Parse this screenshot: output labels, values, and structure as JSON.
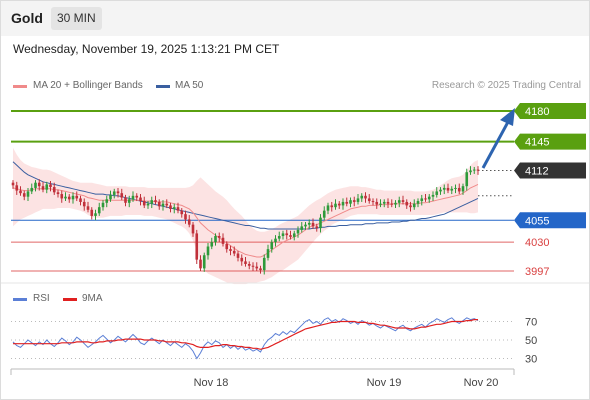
{
  "header": {
    "title": "Gold",
    "timeframe": "30 MIN"
  },
  "timestamp": "Wednesday, November 19, 2025 1:13:21 PM CET",
  "legend": {
    "ma20_label": "MA 20 + Bollinger Bands",
    "ma20_color": "#f08a8a",
    "ma50_label": "MA 50",
    "ma50_color": "#3a5fa0"
  },
  "credit": "Research © 2025 Trading Central",
  "rsi_legend": {
    "rsi_label": "RSI",
    "rsi_color": "#5b7fd6",
    "ma_label": "9MA",
    "ma_color": "#e02020"
  },
  "colors": {
    "resistance": "#5aa010",
    "pivot": "#2466c8",
    "support": "#d94040",
    "up_candle": "#2e9a3a",
    "down_candle": "#c0303a",
    "arrow": "#2d64b0",
    "last_price": "#333333"
  },
  "chart_data": [
    {
      "type": "candlestick",
      "instrument": "Gold",
      "timeframe": "30 MIN",
      "ylim": [
        3980,
        4190
      ],
      "x_tick_labels": [
        "Nov 18",
        "Nov 19",
        "Nov 20"
      ],
      "levels": [
        {
          "value": 4180,
          "label": "4180",
          "kind": "resistance"
        },
        {
          "value": 4145,
          "label": "4145",
          "kind": "resistance"
        },
        {
          "value": 4112,
          "label": "4112",
          "kind": "last"
        },
        {
          "value": 4055,
          "label": "4055",
          "kind": "pivot"
        },
        {
          "value": 4030,
          "label": "4030",
          "kind": "support"
        },
        {
          "value": 3997,
          "label": "3997",
          "kind": "support"
        }
      ],
      "close_series": [
        4095,
        4089,
        4086,
        4082,
        4088,
        4092,
        4098,
        4094,
        4090,
        4096,
        4093,
        4087,
        4085,
        4080,
        4082,
        4079,
        4083,
        4080,
        4076,
        4071,
        4067,
        4060,
        4063,
        4070,
        4075,
        4079,
        4084,
        4088,
        4086,
        4081,
        4075,
        4079,
        4083,
        4081,
        4077,
        4072,
        4074,
        4078,
        4076,
        4071,
        4074,
        4072,
        4068,
        4070,
        4066,
        4062,
        4056,
        4050,
        4040,
        4010,
        4000,
        4015,
        4025,
        4030,
        4037,
        4035,
        4028,
        4022,
        4020,
        4017,
        4012,
        4008,
        4005,
        4003,
        4002,
        4000,
        3998,
        4012,
        4022,
        4030,
        4034,
        4037,
        4040,
        4038,
        4036,
        4040,
        4044,
        4048,
        4050,
        4052,
        4048,
        4046,
        4058,
        4066,
        4072,
        4070,
        4074,
        4072,
        4076,
        4074,
        4078,
        4076,
        4080,
        4083,
        4080,
        4077,
        4076,
        4073,
        4074,
        4076,
        4074,
        4073,
        4075,
        4078,
        4076,
        4072,
        4070,
        4074,
        4077,
        4080,
        4079,
        4082,
        4084,
        4088,
        4090,
        4092,
        4089,
        4091,
        4092,
        4088,
        4094,
        4110,
        4112,
        4113,
        4112
      ],
      "ma20": [
        4092,
        4091,
        4090,
        4089,
        4089,
        4090,
        4091,
        4091,
        4091,
        4091,
        4091,
        4090,
        4090,
        4089,
        4088,
        4087,
        4086,
        4085,
        4084,
        4083,
        4081,
        4080,
        4079,
        4078,
        4078,
        4078,
        4078,
        4078,
        4078,
        4078,
        4078,
        4078,
        4078,
        4078,
        4078,
        4077,
        4077,
        4077,
        4076,
        4076,
        4076,
        4076,
        4075,
        4074,
        4073,
        4072,
        4070,
        4068,
        4064,
        4058,
        4052,
        4048,
        4044,
        4041,
        4038,
        4035,
        4032,
        4029,
        4026,
        4023,
        4020,
        4018,
        4016,
        4015,
        4014,
        4013,
        4013,
        4015,
        4018,
        4021,
        4024,
        4027,
        4030,
        4032,
        4034,
        4036,
        4038,
        4041,
        4044,
        4047,
        4049,
        4050,
        4052,
        4054,
        4056,
        4058,
        4060,
        4062,
        4064,
        4066,
        4068,
        4069,
        4070,
        4071,
        4071,
        4072,
        4072,
        4072,
        4073,
        4073,
        4073,
        4074,
        4074,
        4074,
        4074,
        4074,
        4074,
        4074,
        4074,
        4075,
        4075,
        4076,
        4077,
        4078,
        4079,
        4080,
        4081,
        4082,
        4083,
        4084,
        4086,
        4089,
        4092,
        4094,
        4096
      ],
      "bb_upper": [
        4138,
        4130,
        4124,
        4120,
        4118,
        4116,
        4115,
        4114,
        4113,
        4113,
        4112,
        4110,
        4108,
        4106,
        4104,
        4102,
        4100,
        4099,
        4098,
        4098,
        4098,
        4098,
        4097,
        4096,
        4095,
        4094,
        4094,
        4094,
        4094,
        4094,
        4094,
        4093,
        4093,
        4093,
        4093,
        4093,
        4092,
        4092,
        4092,
        4092,
        4092,
        4092,
        4092,
        4092,
        4092,
        4092,
        4092,
        4093,
        4095,
        4100,
        4104,
        4100,
        4096,
        4092,
        4088,
        4085,
        4082,
        4078,
        4073,
        4068,
        4064,
        4060,
        4055,
        4050,
        4046,
        4043,
        4042,
        4042,
        4043,
        4045,
        4047,
        4050,
        4052,
        4054,
        4056,
        4058,
        4060,
        4064,
        4068,
        4072,
        4075,
        4078,
        4080,
        4083,
        4086,
        4088,
        4090,
        4091,
        4092,
        4093,
        4094,
        4094,
        4094,
        4093,
        4093,
        4092,
        4091,
        4090,
        4090,
        4089,
        4089,
        4089,
        4089,
        4089,
        4089,
        4089,
        4089,
        4088,
        4088,
        4088,
        4088,
        4089,
        4090,
        4092,
        4095,
        4098,
        4101,
        4103,
        4104,
        4105,
        4107,
        4112,
        4118,
        4122,
        4124
      ],
      "bb_lower": [
        4048,
        4052,
        4056,
        4058,
        4060,
        4062,
        4064,
        4066,
        4068,
        4068,
        4068,
        4068,
        4069,
        4069,
        4069,
        4069,
        4068,
        4067,
        4066,
        4064,
        4061,
        4059,
        4058,
        4058,
        4058,
        4059,
        4060,
        4060,
        4060,
        4060,
        4061,
        4061,
        4061,
        4061,
        4061,
        4060,
        4060,
        4060,
        4059,
        4058,
        4057,
        4056,
        4054,
        4052,
        4050,
        4048,
        4045,
        4040,
        4032,
        4020,
        4006,
        3998,
        3994,
        3992,
        3990,
        3988,
        3986,
        3984,
        3983,
        3982,
        3982,
        3982,
        3982,
        3983,
        3983,
        3984,
        3985,
        3986,
        3988,
        3990,
        3993,
        3996,
        3998,
        4001,
        4004,
        4007,
        4010,
        4015,
        4020,
        4025,
        4030,
        4035,
        4039,
        4043,
        4046,
        4050,
        4052,
        4054,
        4056,
        4058,
        4060,
        4061,
        4062,
        4062,
        4062,
        4062,
        4062,
        4062,
        4061,
        4061,
        4061,
        4061,
        4061,
        4061,
        4061,
        4061,
        4061,
        4061,
        4061,
        4061,
        4061,
        4061,
        4061,
        4062,
        4063,
        4064,
        4064,
        4064,
        4064,
        4064,
        4064,
        4064,
        4063,
        4063,
        4064
      ],
      "ma50": [
        4122,
        4118,
        4114,
        4110,
        4107,
        4105,
        4103,
        4101,
        4099,
        4098,
        4097,
        4096,
        4095,
        4094,
        4093,
        4092,
        4091,
        4090,
        4089,
        4088,
        4087,
        4086,
        4085,
        4085,
        4085,
        4084,
        4084,
        4083,
        4083,
        4082,
        4081,
        4080,
        4079,
        4078,
        4077,
        4076,
        4075,
        4074,
        4073,
        4072,
        4071,
        4070,
        4069,
        4068,
        4067,
        4066,
        4065,
        4064,
        4063,
        4062,
        4061,
        4060,
        4059,
        4058,
        4057,
        4056,
        4055,
        4054,
        4053,
        4052,
        4051,
        4050,
        4049,
        4049,
        4048,
        4047,
        4046,
        4046,
        4045,
        4045,
        4045,
        4045,
        4045,
        4045,
        4045,
        4045,
        4045,
        4045,
        4045,
        4045,
        4046,
        4046,
        4047,
        4047,
        4048,
        4048,
        4048,
        4049,
        4049,
        4049,
        4050,
        4050,
        4050,
        4050,
        4051,
        4051,
        4051,
        4052,
        4052,
        4052,
        4052,
        4053,
        4053,
        4053,
        4054,
        4054,
        4055,
        4055,
        4056,
        4057,
        4057,
        4058,
        4059,
        4060,
        4061,
        4062,
        4064,
        4066,
        4068,
        4070,
        4072,
        4074,
        4076,
        4078,
        4080
      ]
    },
    {
      "type": "line",
      "name": "RSI panel",
      "ylim": [
        20,
        80
      ],
      "y_tick_labels": [
        "70",
        "50",
        "30"
      ],
      "rsi_series": [
        48,
        44,
        42,
        46,
        50,
        47,
        44,
        48,
        45,
        50,
        46,
        43,
        47,
        52,
        49,
        45,
        48,
        53,
        50,
        46,
        42,
        45,
        48,
        52,
        55,
        51,
        47,
        50,
        54,
        51,
        48,
        52,
        56,
        52,
        47,
        45,
        49,
        52,
        49,
        46,
        50,
        47,
        44,
        48,
        45,
        42,
        46,
        43,
        38,
        30,
        36,
        44,
        48,
        45,
        49,
        47,
        42,
        45,
        41,
        44,
        40,
        43,
        39,
        41,
        38,
        40,
        37,
        45,
        50,
        53,
        57,
        55,
        59,
        56,
        60,
        58,
        62,
        66,
        70,
        72,
        68,
        70,
        67,
        72,
        74,
        70,
        72,
        69,
        73,
        71,
        68,
        70,
        67,
        71,
        69,
        66,
        68,
        65,
        63,
        66,
        64,
        62,
        60,
        64,
        66,
        62,
        60,
        63,
        65,
        67,
        64,
        68,
        70,
        73,
        71,
        69,
        72,
        74,
        70,
        68,
        71,
        74,
        72,
        73,
        71
      ],
      "ma9_series": [
        46,
        46,
        46,
        46,
        46,
        46,
        46,
        46,
        46,
        46,
        46,
        46,
        46,
        47,
        47,
        47,
        47,
        48,
        48,
        48,
        48,
        47,
        47,
        48,
        48,
        49,
        49,
        49,
        50,
        50,
        51,
        51,
        51,
        51,
        51,
        50,
        50,
        50,
        50,
        49,
        49,
        48,
        48,
        48,
        48,
        47,
        47,
        46,
        45,
        43,
        42,
        42,
        42,
        43,
        44,
        44,
        45,
        45,
        44,
        44,
        43,
        43,
        42,
        42,
        41,
        41,
        40,
        41,
        42,
        44,
        46,
        48,
        50,
        52,
        54,
        56,
        58,
        60,
        62,
        63,
        64,
        65,
        66,
        67,
        68,
        69,
        69,
        70,
        70,
        70,
        70,
        70,
        69,
        69,
        69,
        68,
        68,
        67,
        66,
        66,
        65,
        64,
        63,
        63,
        63,
        63,
        62,
        62,
        63,
        64,
        64,
        65,
        66,
        67,
        67,
        68,
        69,
        70,
        70,
        70,
        70,
        71,
        71,
        72,
        72
      ]
    }
  ]
}
